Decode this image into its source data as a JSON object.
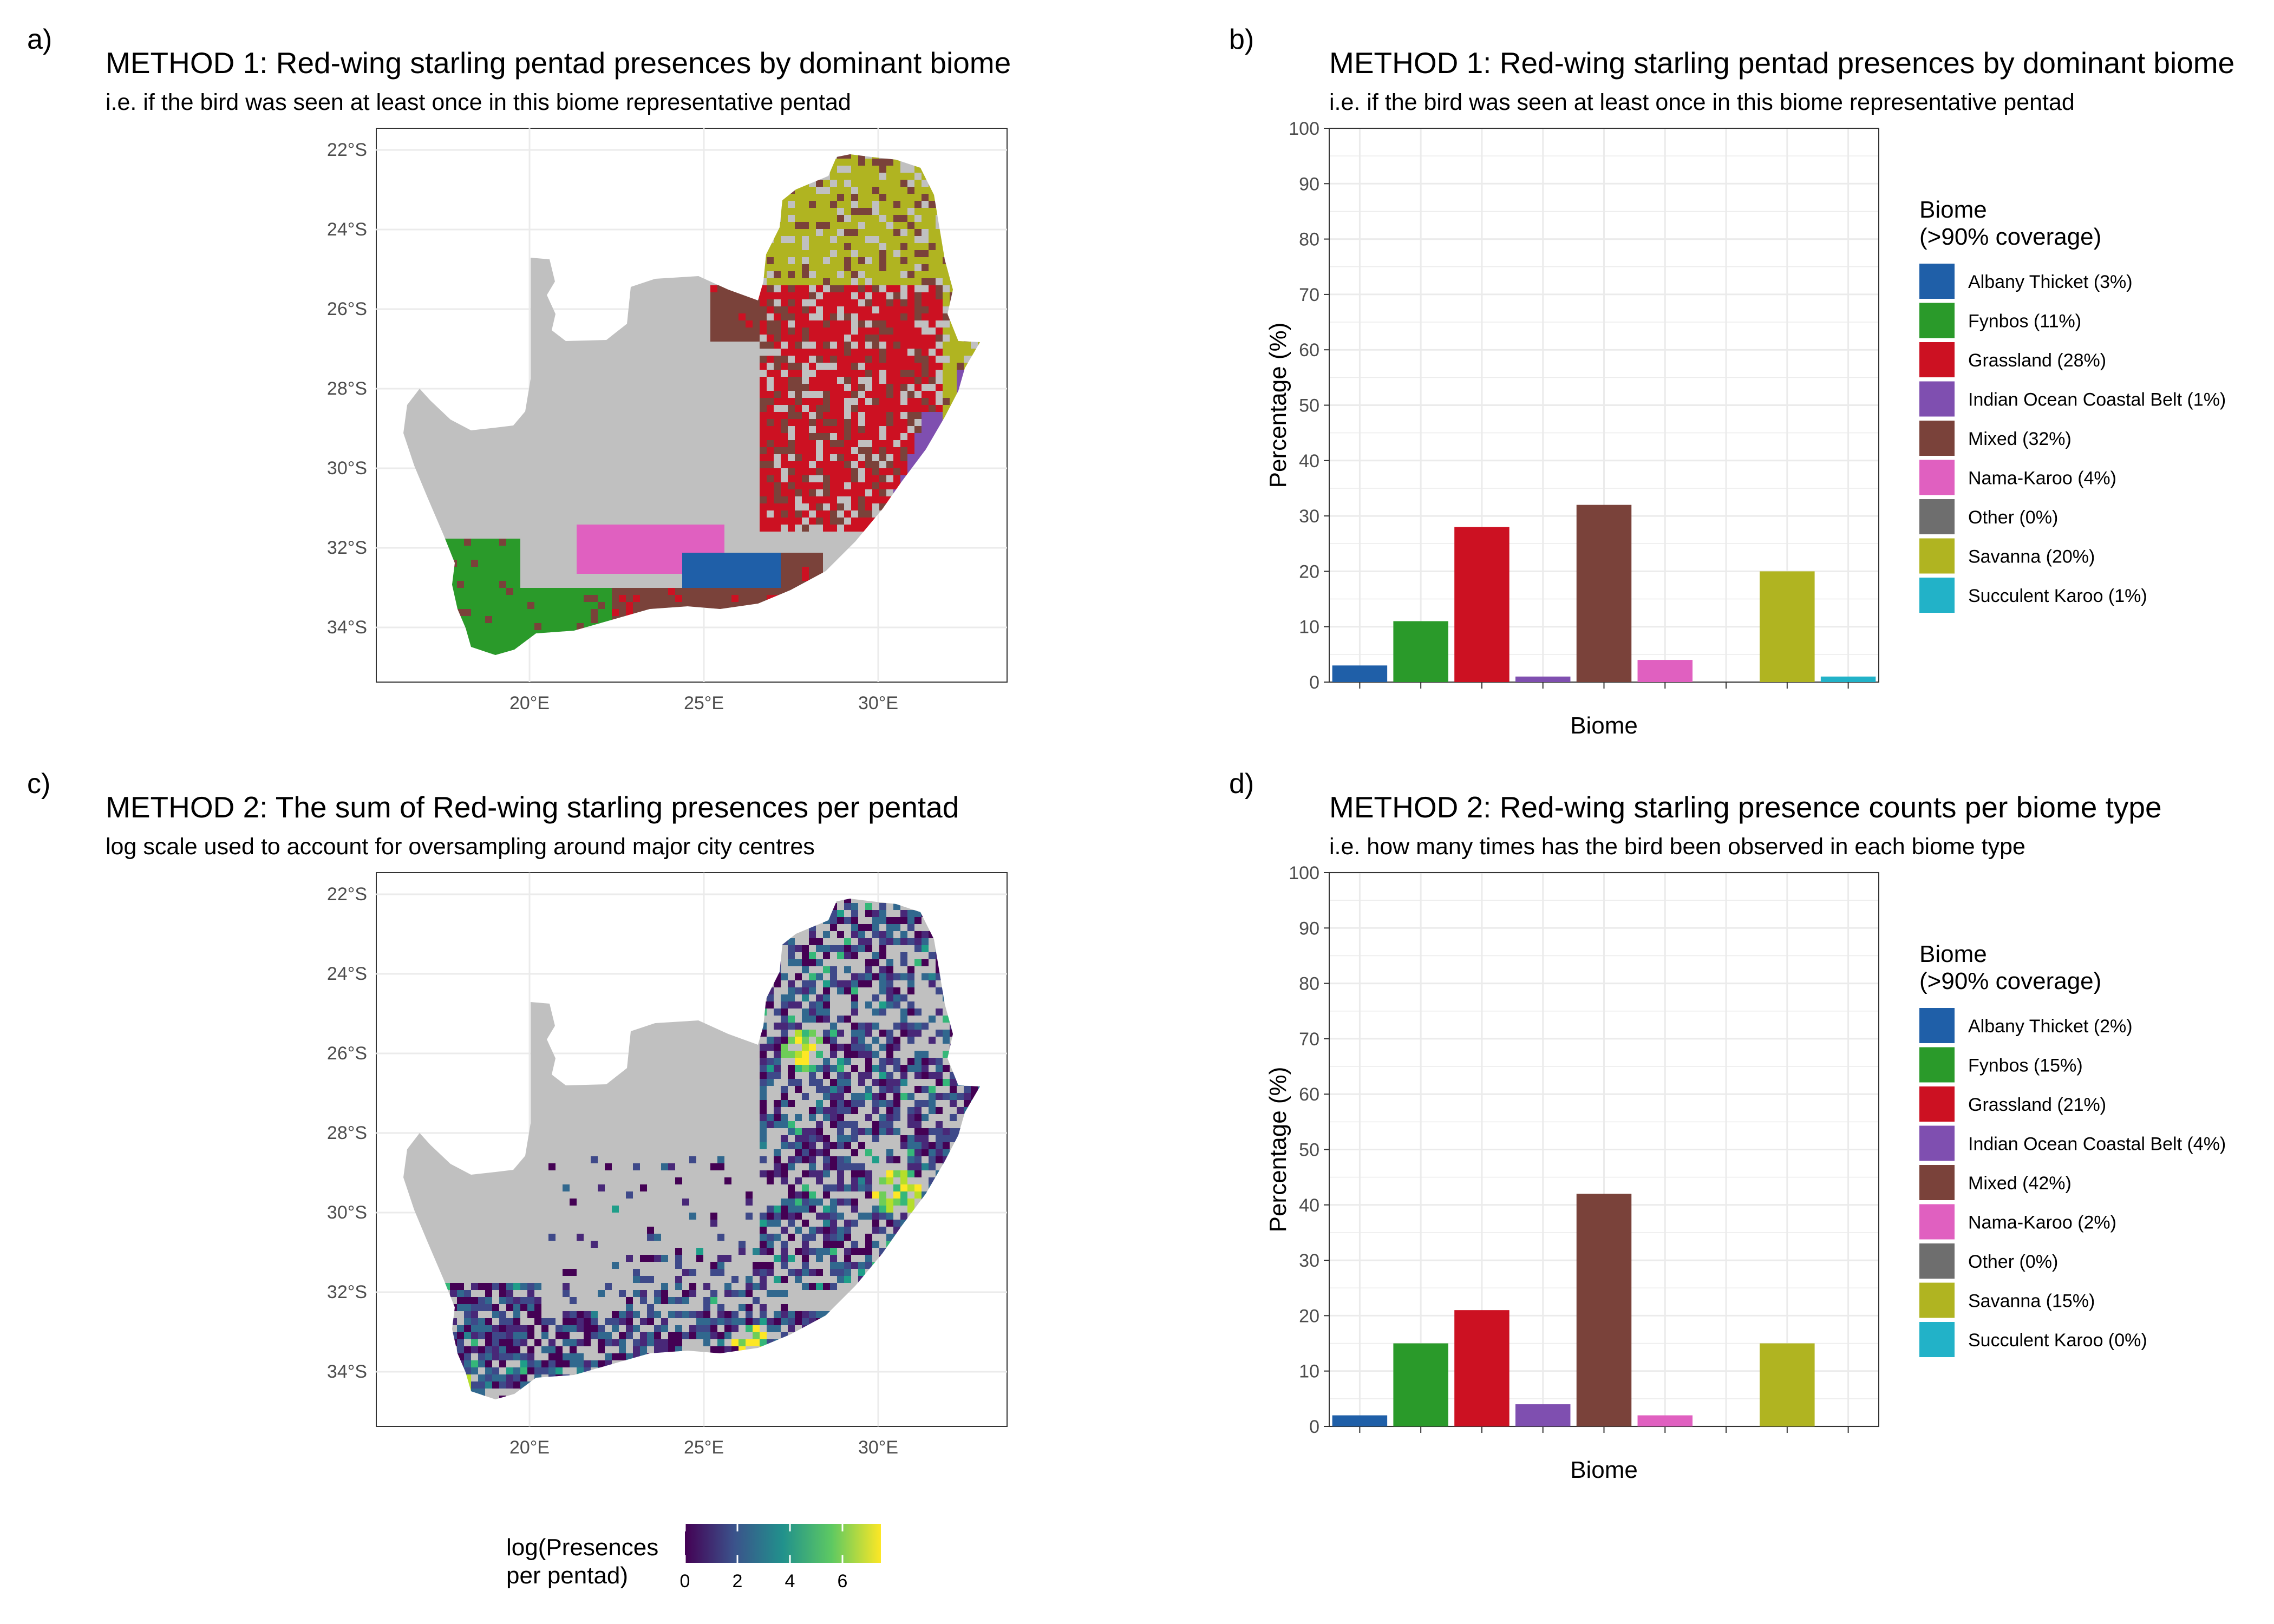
{
  "panels": {
    "a": {
      "letter": "a)",
      "title": "METHOD 1: Red-wing starling pentad presences by dominant biome",
      "subtitle": "i.e. if the bird was seen at least once in this biome representative pentad",
      "lat_ticks": [
        "22°S",
        "24°S",
        "26°S",
        "28°S",
        "30°S",
        "32°S",
        "34°S"
      ],
      "lon_ticks": [
        "20°E",
        "25°E",
        "30°E"
      ]
    },
    "b": {
      "letter": "b)",
      "title": "METHOD 1: Red-wing starling pentad presences by dominant biome",
      "subtitle": "i.e. if the bird was seen at least once in this biome representative pentad"
    },
    "c": {
      "letter": "c)",
      "title": "METHOD 2: The sum of Red-wing starling presences per pentad",
      "subtitle": "log scale used to account for oversampling around major city centres",
      "lat_ticks": [
        "22°S",
        "24°S",
        "26°S",
        "28°S",
        "30°S",
        "32°S",
        "34°S"
      ],
      "lon_ticks": [
        "20°E",
        "25°E",
        "30°E"
      ],
      "colorbar": {
        "title_line1": "log(Presences",
        "title_line2": "per pentad)",
        "ticks": [
          "0",
          "2",
          "4",
          "6"
        ]
      }
    },
    "d": {
      "letter": "d)",
      "title": "METHOD 2: Red-wing starling presence counts per biome type",
      "subtitle": "i.e. how many times has the bird been observed in each biome type"
    }
  },
  "biome_colors": {
    "albany": "#1f5fa8",
    "fynbos": "#2a9a2a",
    "grassland": "#cc1122",
    "ioc": "#7f4fb0",
    "mixed": "#7a423a",
    "nama": "#e060c0",
    "other": "#6e6e6e",
    "savanna": "#b0b421",
    "succulent": "#22b2c8",
    "land": "#c0c0c0"
  },
  "chart_data": [
    {
      "type": "bar",
      "panel": "b",
      "title": "METHOD 1: Red-wing starling pentad presences by dominant biome",
      "subtitle": "i.e. if the bird was seen at least once in this biome representative pentad",
      "xlabel": "Biome",
      "ylabel": "Percentage (%)",
      "ylim": [
        0,
        100
      ],
      "yticks": [
        "0",
        "10",
        "20",
        "30",
        "40",
        "50",
        "60",
        "70",
        "80",
        "90",
        "100"
      ],
      "grid": true,
      "legend_title_line1": "Biome",
      "legend_title_line2": "(>90% coverage)",
      "legend_position": "right",
      "categories": [
        "Albany Thicket (3%)",
        "Fynbos (11%)",
        "Grassland (28%)",
        "Indian Ocean Coastal Belt (1%)",
        "Mixed (32%)",
        "Nama-Karoo (4%)",
        "Other (0%)",
        "Savanna (20%)",
        "Succulent Karoo (1%)"
      ],
      "values": [
        3,
        11,
        28,
        1,
        32,
        4,
        0,
        20,
        1
      ],
      "colors": [
        "#1f5fa8",
        "#2a9a2a",
        "#cc1122",
        "#7f4fb0",
        "#7a423a",
        "#e060c0",
        "#6e6e6e",
        "#b0b421",
        "#22b2c8"
      ]
    },
    {
      "type": "bar",
      "panel": "d",
      "title": "METHOD 2: Red-wing starling presence counts per biome type",
      "subtitle": "i.e. how many times has the bird been observed in each biome type",
      "xlabel": "Biome",
      "ylabel": "Percentage (%)",
      "ylim": [
        0,
        100
      ],
      "yticks": [
        "0",
        "10",
        "20",
        "30",
        "40",
        "50",
        "60",
        "70",
        "80",
        "90",
        "100"
      ],
      "grid": true,
      "legend_title_line1": "Biome",
      "legend_title_line2": "(>90% coverage)",
      "legend_position": "right",
      "categories": [
        "Albany Thicket (2%)",
        "Fynbos (15%)",
        "Grassland (21%)",
        "Indian Ocean Coastal Belt (4%)",
        "Mixed (42%)",
        "Nama-Karoo (2%)",
        "Other (0%)",
        "Savanna (15%)",
        "Succulent Karoo (0%)"
      ],
      "values": [
        2,
        15,
        21,
        4,
        42,
        2,
        0,
        15,
        0
      ],
      "colors": [
        "#1f5fa8",
        "#2a9a2a",
        "#cc1122",
        "#7f4fb0",
        "#7a423a",
        "#e060c0",
        "#6e6e6e",
        "#b0b421",
        "#22b2c8"
      ]
    }
  ]
}
